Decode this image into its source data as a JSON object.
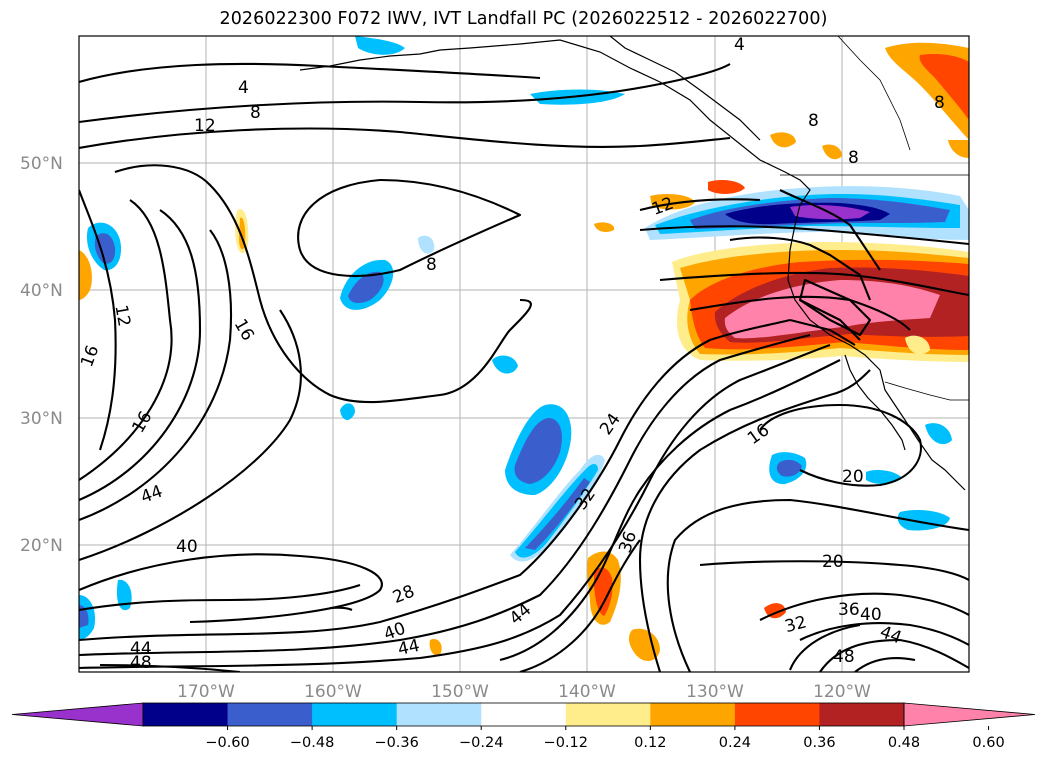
{
  "title": "2026022300 F072 IWV, IVT Landfall PC (2026022512 - 2026022700)",
  "map": {
    "lat_labels": [
      {
        "id": "50",
        "text": "50°N"
      },
      {
        "id": "40",
        "text": "40°N"
      },
      {
        "id": "30",
        "text": "30°N"
      },
      {
        "id": "20",
        "text": "20°N"
      }
    ],
    "lon_labels": [
      {
        "id": "170",
        "text": "170°W"
      },
      {
        "id": "160",
        "text": "160°W"
      },
      {
        "id": "150",
        "text": "150°W"
      },
      {
        "id": "140",
        "text": "140°W"
      },
      {
        "id": "130",
        "text": "130°W"
      },
      {
        "id": "120",
        "text": "120°W"
      }
    ],
    "contour_labels": [
      "4",
      "8",
      "12",
      "16",
      "20",
      "24",
      "28",
      "32",
      "36",
      "40",
      "44",
      "48"
    ]
  },
  "colorbar": {
    "ticks": [
      "−0.60",
      "−0.48",
      "−0.36",
      "−0.24",
      "−0.12",
      "0.12",
      "0.24",
      "0.36",
      "0.48",
      "0.60"
    ],
    "colors": [
      "#9932cc",
      "#00008b",
      "#3a5fcd",
      "#00bfff",
      "#b0e2ff",
      "#ffffff",
      "#ffec8b",
      "#ffa500",
      "#ff4500",
      "#b22222",
      "#ff82ab"
    ]
  }
}
